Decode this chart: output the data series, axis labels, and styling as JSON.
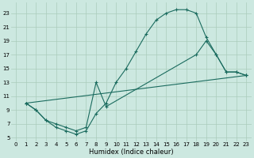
{
  "xlabel": "Humidex (Indice chaleur)",
  "xlim": [
    -0.5,
    23.5
  ],
  "ylim": [
    4.5,
    24.5
  ],
  "background_color": "#cce8e0",
  "grid_color": "#aaccbb",
  "line_color": "#1a6b5e",
  "xticks": [
    0,
    1,
    2,
    3,
    4,
    5,
    6,
    7,
    8,
    9,
    10,
    11,
    12,
    13,
    14,
    15,
    16,
    17,
    18,
    19,
    20,
    21,
    22,
    23
  ],
  "yticks": [
    5,
    7,
    9,
    11,
    13,
    15,
    17,
    19,
    21,
    23
  ],
  "line1_x": [
    1,
    2,
    3,
    4,
    5,
    6,
    7,
    8,
    9,
    10,
    11,
    12,
    13,
    14,
    15,
    16,
    17,
    18,
    19,
    20,
    21,
    22,
    23
  ],
  "line1_y": [
    10,
    9,
    7.5,
    6.5,
    6.0,
    5.5,
    6.0,
    8.5,
    10.0,
    13.0,
    15.0,
    17.5,
    20.0,
    22.0,
    23.0,
    23.5,
    23.5,
    23.0,
    19.5,
    17.0,
    14.5,
    14.5,
    14.0
  ],
  "line2_x": [
    1,
    2,
    3,
    4,
    5,
    6,
    7,
    8,
    9,
    18,
    19,
    20,
    21,
    22,
    23
  ],
  "line2_y": [
    10,
    9,
    7.5,
    7.0,
    6.5,
    6.0,
    6.5,
    13.0,
    9.5,
    17.0,
    19.0,
    17.0,
    14.5,
    14.5,
    14.0
  ],
  "line3_x": [
    1,
    23
  ],
  "line3_y": [
    10,
    14.0
  ]
}
